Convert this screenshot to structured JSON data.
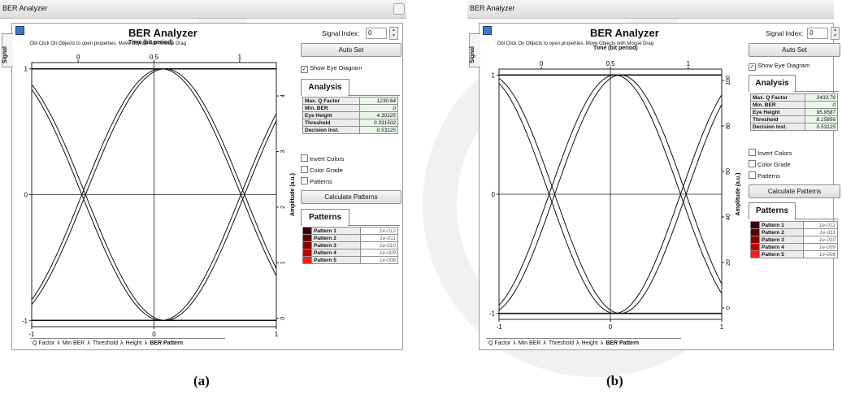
{
  "captions": [
    "(a)",
    "(b)"
  ],
  "panels": [
    {
      "window_title": "BER Analyzer",
      "side_tab": "Signal",
      "title": "BER Analyzer",
      "subtitle": "Dbl Click On Objects to open properties.  Move Objects with Mouse Drag",
      "x_axis_title": "Time (bit period)",
      "y_axis_title": "Amplitude (a.u.)",
      "signal_index_label": "Signal Index:",
      "signal_index_value": "0",
      "auto_set_label": "Auto Set",
      "show_eye_label": "Show Eye Diagram",
      "analysis_tab": "Analysis",
      "analysis": [
        {
          "key": "Max. Q Factor",
          "value": "1230.64"
        },
        {
          "key": "Min. BER",
          "value": "0"
        },
        {
          "key": "Eye Height",
          "value": "4.30225"
        },
        {
          "key": "Threshold",
          "value": "0.331502"
        },
        {
          "key": "Decision Inst.",
          "value": "0.53125"
        }
      ],
      "options": [
        "Invert Colors",
        "Color Grade",
        "Patterns"
      ],
      "calc_label": "Calculate Patterns",
      "patterns_tab": "Patterns",
      "patterns": [
        {
          "name": "Pattern 1",
          "value": "1e-012",
          "color": "#3a0000"
        },
        {
          "name": "Pattern 2",
          "value": "1e-011",
          "color": "#5c0000"
        },
        {
          "name": "Pattern 3",
          "value": "1e-010",
          "color": "#8a0000"
        },
        {
          "name": "Pattern 4",
          "value": "1e-009",
          "color": "#c00000"
        },
        {
          "name": "Pattern 5",
          "value": "1e-008",
          "color": "#ff1a1a"
        }
      ],
      "bottom_tabs": [
        "Q Factor",
        "Min BER",
        "Threshold",
        "Height",
        "BER Pattern"
      ]
    },
    {
      "window_title": "BER Analyzer",
      "side_tab": "Signal",
      "title": "BER Analyzer",
      "subtitle": "Dbl Click On Objects to open properties.  Move Objects with Mouse Drag",
      "x_axis_title": "Time (bit period)",
      "y_axis_title": "Amplitude (a.u.)",
      "signal_index_label": "Signal Index:",
      "signal_index_value": "0",
      "auto_set_label": "Auto Set",
      "show_eye_label": "Show Eye Diagram",
      "analysis_tab": "Analysis",
      "analysis": [
        {
          "key": "Max. Q Factor",
          "value": "2433.76"
        },
        {
          "key": "Min. BER",
          "value": "0"
        },
        {
          "key": "Eye Height",
          "value": "95.9587"
        },
        {
          "key": "Threshold",
          "value": "8.15856"
        },
        {
          "key": "Decision Inst.",
          "value": "0.53125"
        }
      ],
      "options": [
        "Invert Colors",
        "Color Grade",
        "Patterns"
      ],
      "calc_label": "Calculate Patterns",
      "patterns_tab": "Patterns",
      "patterns": [
        {
          "name": "Pattern 1",
          "value": "1e-012",
          "color": "#3a0000"
        },
        {
          "name": "Pattern 2",
          "value": "1e-011",
          "color": "#5c0000"
        },
        {
          "name": "Pattern 3",
          "value": "1e-010",
          "color": "#8a0000"
        },
        {
          "name": "Pattern 4",
          "value": "1e-009",
          "color": "#c00000"
        },
        {
          "name": "Pattern 5",
          "value": "1e-008",
          "color": "#ff1a1a"
        }
      ],
      "bottom_tabs": [
        "Q Factor",
        "Min BER",
        "Threshold",
        "Height",
        "BER Pattern"
      ]
    }
  ],
  "chart_data": [
    {
      "type": "line",
      "x_bottom_ticks": [
        "-1",
        "0",
        "1"
      ],
      "x_top_ticks": [
        "0",
        "0.5",
        "1"
      ],
      "y_left_ticks": [
        "-1",
        "0",
        "1"
      ],
      "y_right_ticks": [
        "0",
        "1",
        "2",
        "3",
        "4"
      ],
      "xlim": [
        -1,
        1
      ],
      "ylim_left": [
        -1.05,
        1.05
      ],
      "ylim_right": [
        -0.15,
        4.6
      ],
      "crossings_x": [
        -0.59,
        0.74
      ],
      "eye_center_x": 0.06,
      "series": [
        {
          "values": "rising/falling raised-cosine transitions of NRZ eye"
        }
      ]
    },
    {
      "type": "line",
      "x_bottom_ticks": [
        "-1",
        "0",
        "1"
      ],
      "x_top_ticks": [
        "0",
        "0.5",
        "1"
      ],
      "y_left_ticks": [
        "-1",
        "0",
        "1"
      ],
      "y_right_ticks": [
        "0",
        "20",
        "40",
        "60",
        "80",
        "100"
      ],
      "xlim": [
        -1,
        1
      ],
      "ylim_left": [
        -1.05,
        1.05
      ],
      "ylim_right": [
        -5,
        105
      ],
      "crossings_x": [
        -0.55,
        0.68
      ],
      "eye_center_x": 0.04,
      "series": [
        {
          "values": "rising/falling raised-cosine transitions of NRZ eye"
        }
      ]
    }
  ]
}
